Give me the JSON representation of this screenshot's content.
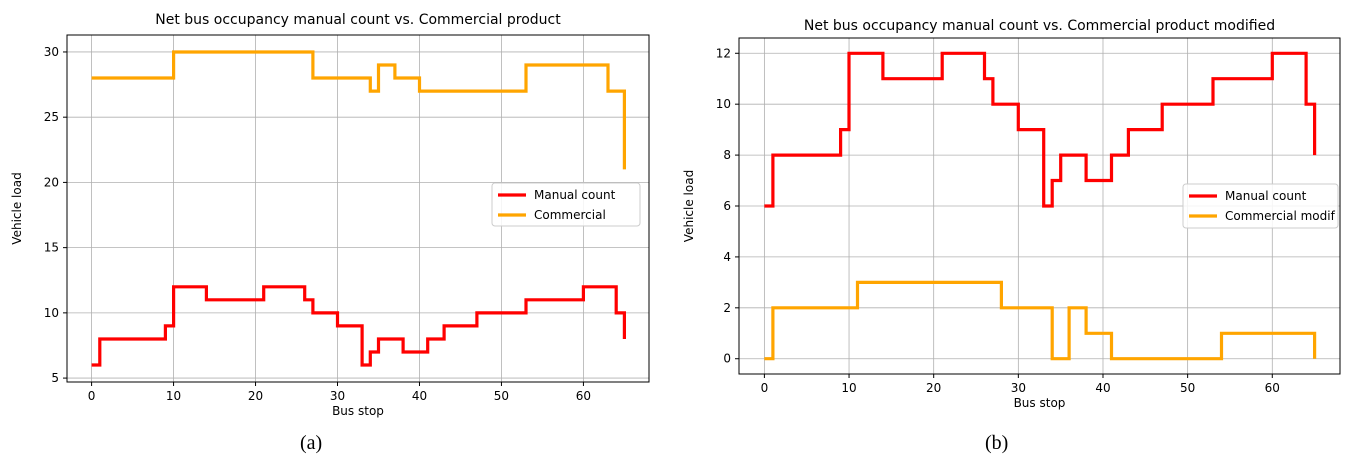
{
  "chart_data": [
    {
      "type": "line",
      "step": true,
      "title": "Net bus occupancy manual count vs. Commercial product",
      "xlabel": "Bus stop",
      "ylabel": "Vehicle load",
      "xlim": [
        -3,
        68
      ],
      "ylim": [
        4.7,
        31.3
      ],
      "xticks": [
        0,
        10,
        20,
        30,
        40,
        50,
        60
      ],
      "yticks": [
        5,
        10,
        15,
        20,
        25,
        30
      ],
      "grid": true,
      "legend_position": "center-right",
      "caption": "(a)",
      "series": [
        {
          "name": "Manual count",
          "color": "#ff0000",
          "points": [
            [
              0,
              6
            ],
            [
              1,
              8
            ],
            [
              9,
              9
            ],
            [
              10,
              12
            ],
            [
              14,
              11
            ],
            [
              21,
              12
            ],
            [
              26,
              11
            ],
            [
              27,
              10
            ],
            [
              30,
              9
            ],
            [
              33,
              6
            ],
            [
              34,
              7
            ],
            [
              35,
              8
            ],
            [
              38,
              7
            ],
            [
              41,
              8
            ],
            [
              43,
              9
            ],
            [
              47,
              10
            ],
            [
              53,
              11
            ],
            [
              60,
              12
            ],
            [
              64,
              10
            ],
            [
              65,
              8
            ]
          ]
        },
        {
          "name": "Commercial",
          "color": "#ffa500",
          "points": [
            [
              0,
              28
            ],
            [
              10,
              30
            ],
            [
              27,
              28
            ],
            [
              34,
              27
            ],
            [
              35,
              29
            ],
            [
              37,
              28
            ],
            [
              40,
              27
            ],
            [
              53,
              29
            ],
            [
              63,
              27
            ],
            [
              65,
              21
            ]
          ]
        }
      ]
    },
    {
      "type": "line",
      "step": true,
      "title": "Net bus occupancy manual count vs. Commercial product modified",
      "xlabel": "Bus stop",
      "ylabel": "Vehicle load",
      "xlim": [
        -3,
        68
      ],
      "ylim": [
        -0.6,
        12.6
      ],
      "xticks": [
        0,
        10,
        20,
        30,
        40,
        50,
        60
      ],
      "yticks": [
        0,
        2,
        4,
        6,
        8,
        10,
        12
      ],
      "grid": true,
      "legend_position": "center-right",
      "caption": "(b)",
      "series": [
        {
          "name": "Manual count",
          "color": "#ff0000",
          "points": [
            [
              0,
              6
            ],
            [
              1,
              8
            ],
            [
              9,
              9
            ],
            [
              10,
              12
            ],
            [
              14,
              11
            ],
            [
              21,
              12
            ],
            [
              26,
              11
            ],
            [
              27,
              10
            ],
            [
              30,
              9
            ],
            [
              33,
              6
            ],
            [
              34,
              7
            ],
            [
              35,
              8
            ],
            [
              38,
              7
            ],
            [
              41,
              8
            ],
            [
              43,
              9
            ],
            [
              47,
              10
            ],
            [
              53,
              11
            ],
            [
              60,
              12
            ],
            [
              64,
              10
            ],
            [
              65,
              8
            ]
          ]
        },
        {
          "name": "Commercial modif",
          "color": "#ffa500",
          "points": [
            [
              0,
              0
            ],
            [
              1,
              2
            ],
            [
              11,
              3
            ],
            [
              28,
              2
            ],
            [
              34,
              0
            ],
            [
              36,
              2
            ],
            [
              38,
              1
            ],
            [
              41,
              0
            ],
            [
              54,
              1
            ],
            [
              65,
              0
            ]
          ]
        }
      ]
    }
  ]
}
